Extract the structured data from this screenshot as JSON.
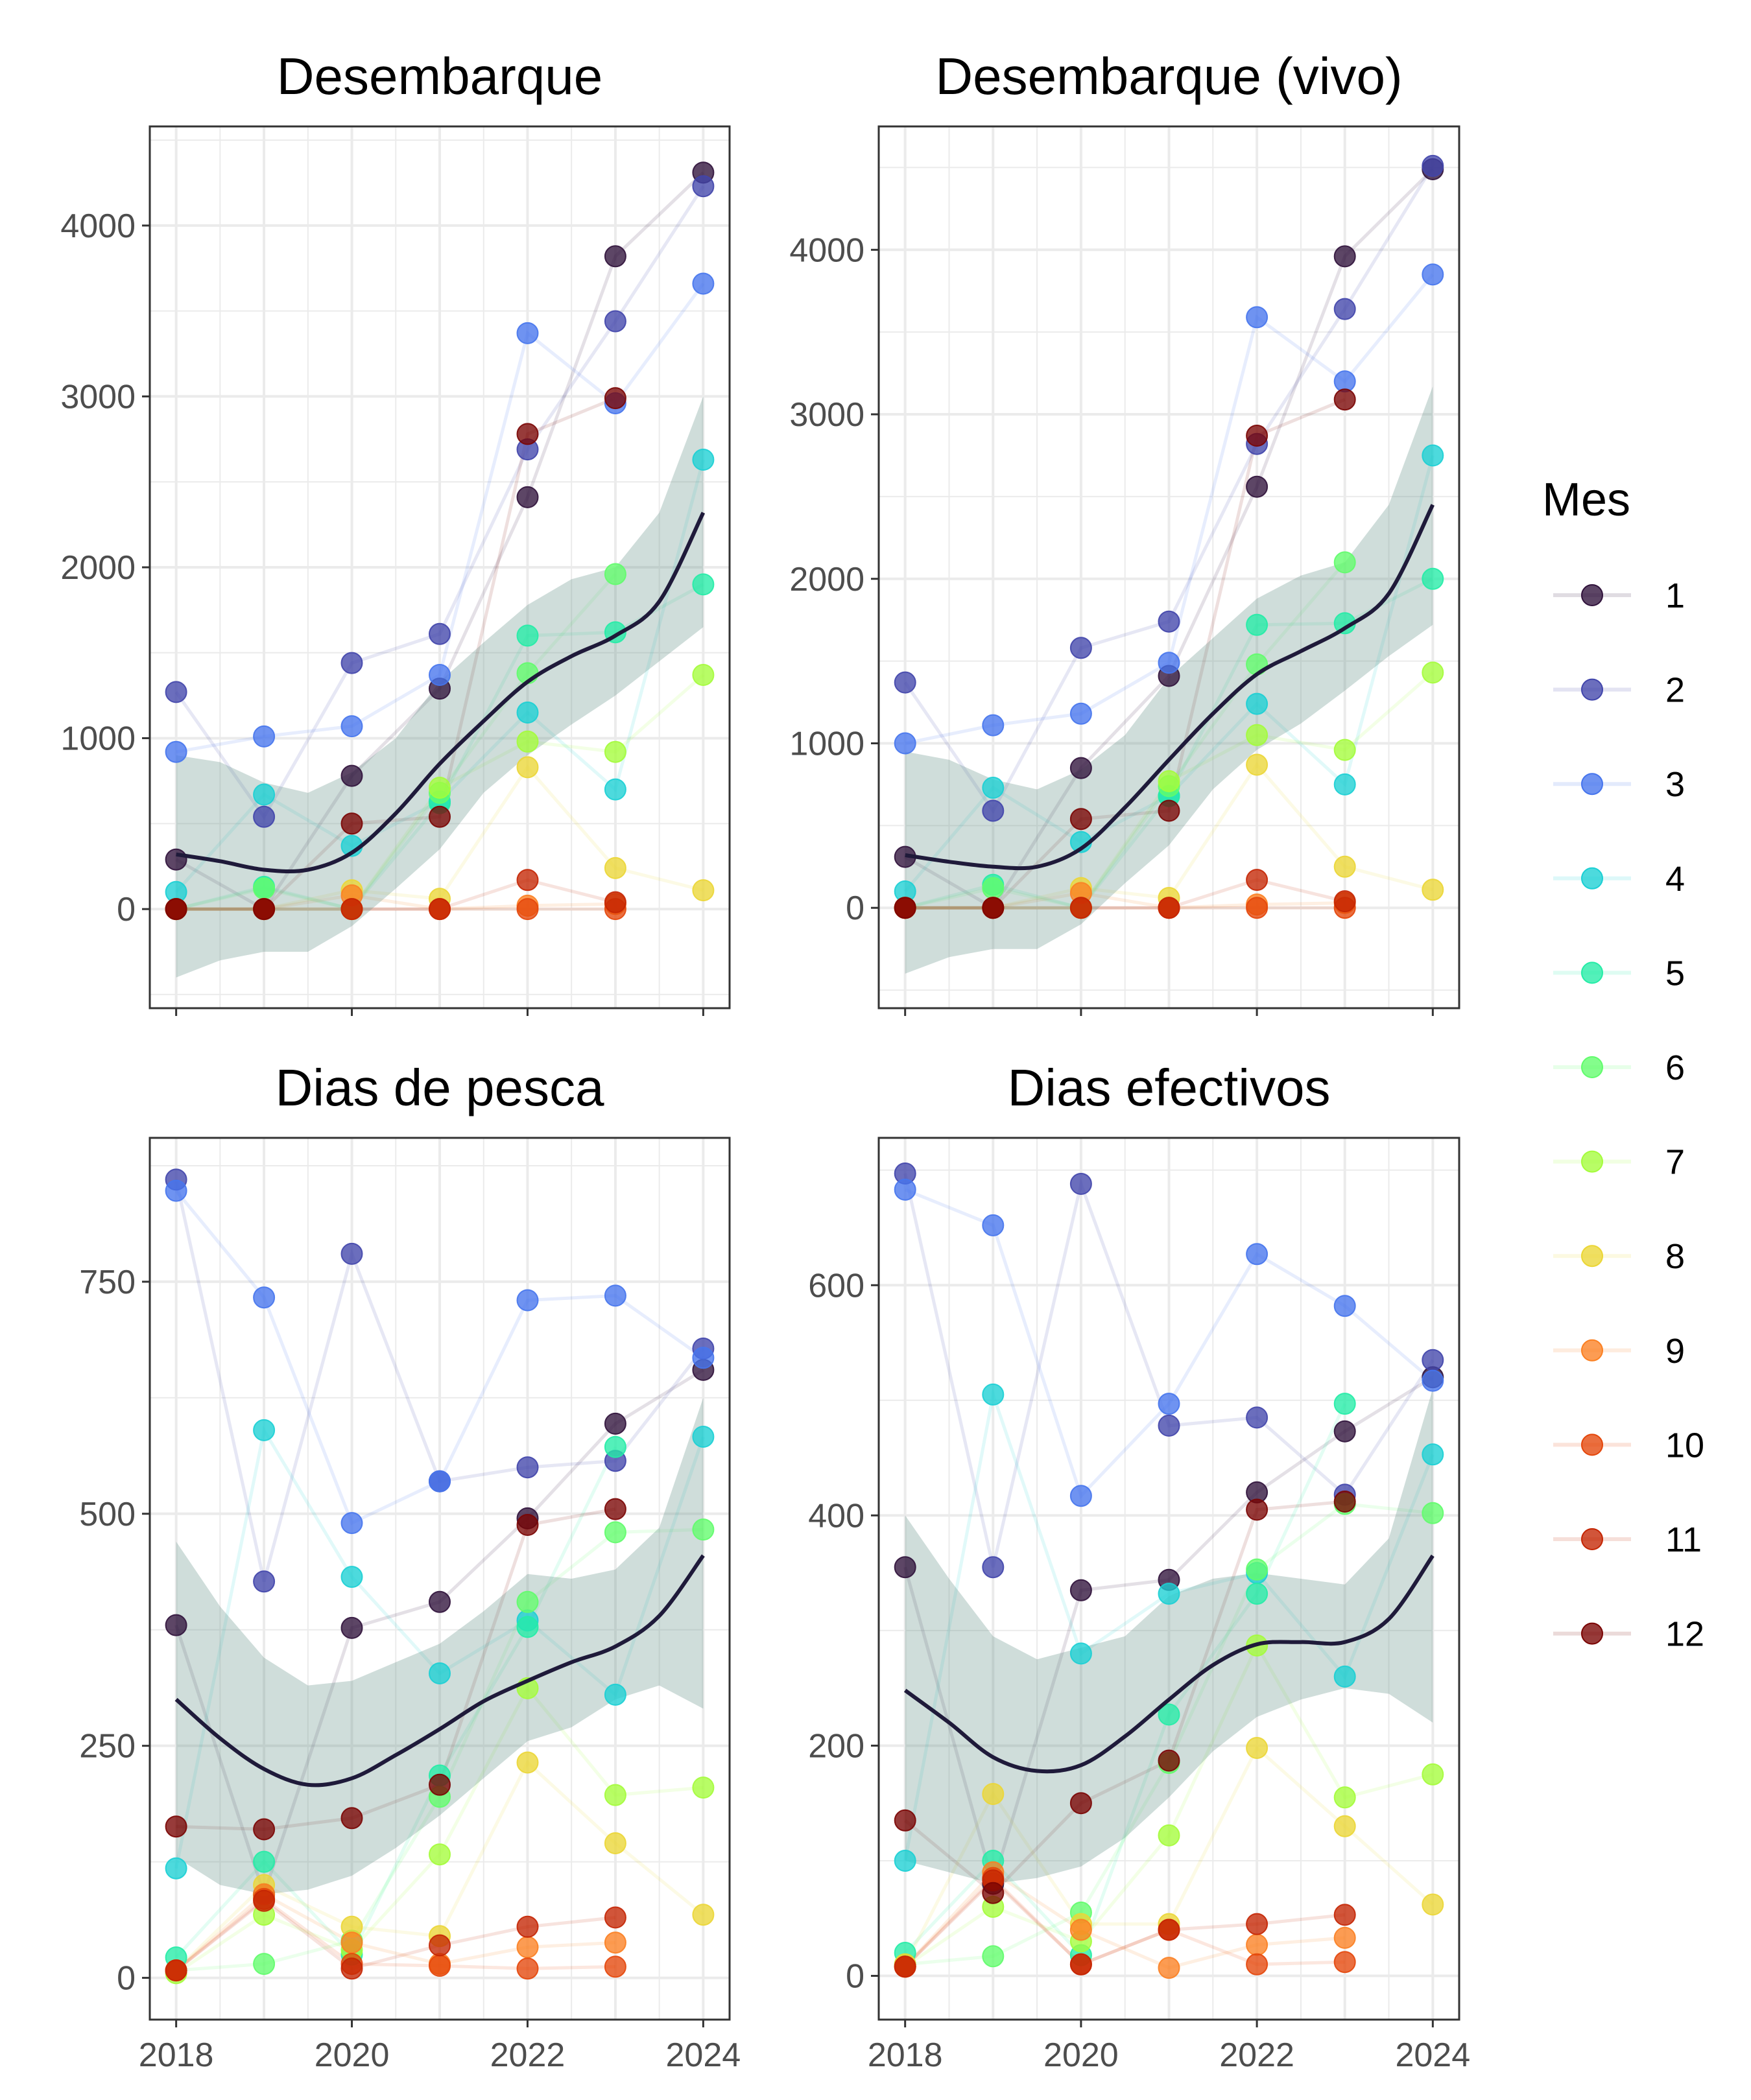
{
  "chart_data": [
    {
      "type": "scatter",
      "title": "Desembarque",
      "xlabel": "",
      "ylabel": "",
      "x": [
        2018,
        2019,
        2020,
        2021,
        2022,
        2023,
        2024
      ],
      "xlim": [
        2017.7,
        2024.3
      ],
      "ylim": [
        -580,
        4580
      ],
      "y_ticks": [
        0,
        1000,
        2000,
        3000,
        4000
      ],
      "y_tick_labels": [
        "0",
        "1000",
        "2000",
        "3000",
        "4000"
      ],
      "x_tick_labels_shown": false,
      "series": [
        {
          "name": "1",
          "values": [
            290,
            0,
            780,
            1290,
            2410,
            3820,
            4310
          ]
        },
        {
          "name": "2",
          "values": [
            1270,
            540,
            1440,
            1610,
            2690,
            3440,
            4230
          ]
        },
        {
          "name": "3",
          "values": [
            920,
            1010,
            1070,
            1370,
            3370,
            2960,
            3660
          ]
        },
        {
          "name": "4",
          "values": [
            100,
            670,
            370,
            630,
            1150,
            700,
            2630
          ]
        },
        {
          "name": "5",
          "values": [
            0,
            130,
            0,
            620,
            1600,
            1620,
            1900
          ]
        },
        {
          "name": "6",
          "values": [
            0,
            120,
            0,
            680,
            1380,
            1960,
            null
          ]
        },
        {
          "name": "7",
          "values": [
            0,
            0,
            0,
            710,
            980,
            920,
            1370
          ]
        },
        {
          "name": "8",
          "values": [
            0,
            0,
            110,
            60,
            830,
            240,
            110
          ]
        },
        {
          "name": "9",
          "values": [
            0,
            0,
            80,
            0,
            20,
            30,
            null
          ]
        },
        {
          "name": "10",
          "values": [
            0,
            0,
            0,
            0,
            0,
            0,
            null
          ]
        },
        {
          "name": "11",
          "values": [
            0,
            0,
            0,
            0,
            170,
            40,
            null
          ]
        },
        {
          "name": "12",
          "values": [
            0,
            0,
            500,
            540,
            2780,
            2990,
            null
          ]
        }
      ],
      "smooth": {
        "x": [
          2018,
          2018.5,
          2019,
          2019.5,
          2020,
          2020.5,
          2021,
          2021.5,
          2022,
          2022.5,
          2023,
          2023.5,
          2024
        ],
        "fit": [
          320,
          280,
          230,
          230,
          330,
          560,
          850,
          1100,
          1330,
          1480,
          1600,
          1800,
          2320
        ],
        "lower": [
          -400,
          -300,
          -250,
          -250,
          -100,
          120,
          350,
          680,
          900,
          1080,
          1250,
          1450,
          1650
        ],
        "upper": [
          900,
          860,
          740,
          680,
          800,
          1000,
          1330,
          1560,
          1780,
          1930,
          2000,
          2320,
          3000
        ]
      }
    },
    {
      "type": "scatter",
      "title": "Desembarque (vivo)",
      "xlabel": "",
      "ylabel": "",
      "x": [
        2018,
        2019,
        2020,
        2021,
        2022,
        2023,
        2024
      ],
      "xlim": [
        2017.7,
        2024.3
      ],
      "ylim": [
        -610,
        4750
      ],
      "y_ticks": [
        0,
        1000,
        2000,
        3000,
        4000
      ],
      "y_tick_labels": [
        "0",
        "1000",
        "2000",
        "3000",
        "4000"
      ],
      "x_tick_labels_shown": false,
      "series": [
        {
          "name": "1",
          "values": [
            310,
            0,
            850,
            1410,
            2560,
            3960,
            4490
          ]
        },
        {
          "name": "2",
          "values": [
            1370,
            590,
            1580,
            1740,
            2820,
            3640,
            4510
          ]
        },
        {
          "name": "3",
          "values": [
            1000,
            1110,
            1180,
            1490,
            3590,
            3200,
            3850
          ]
        },
        {
          "name": "4",
          "values": [
            100,
            730,
            400,
            680,
            1240,
            750,
            2750
          ]
        },
        {
          "name": "5",
          "values": [
            0,
            140,
            0,
            680,
            1720,
            1730,
            2000
          ]
        },
        {
          "name": "6",
          "values": [
            0,
            120,
            0,
            740,
            1480,
            2100,
            null
          ]
        },
        {
          "name": "7",
          "values": [
            0,
            0,
            0,
            770,
            1050,
            960,
            1430
          ]
        },
        {
          "name": "8",
          "values": [
            0,
            0,
            120,
            60,
            870,
            250,
            110
          ]
        },
        {
          "name": "9",
          "values": [
            0,
            0,
            90,
            0,
            20,
            30,
            null
          ]
        },
        {
          "name": "10",
          "values": [
            0,
            0,
            0,
            0,
            0,
            0,
            null
          ]
        },
        {
          "name": "11",
          "values": [
            0,
            0,
            0,
            0,
            170,
            40,
            null
          ]
        },
        {
          "name": "12",
          "values": [
            0,
            0,
            540,
            590,
            2870,
            3090,
            null
          ]
        }
      ],
      "smooth": {
        "x": [
          2018,
          2018.5,
          2019,
          2019.5,
          2020,
          2020.5,
          2021,
          2021.5,
          2022,
          2022.5,
          2023,
          2023.5,
          2024
        ],
        "fit": [
          320,
          280,
          250,
          250,
          360,
          610,
          900,
          1180,
          1420,
          1560,
          1700,
          1910,
          2450
        ],
        "lower": [
          -400,
          -300,
          -250,
          -250,
          -100,
          150,
          380,
          720,
          960,
          1120,
          1320,
          1530,
          1720
        ],
        "upper": [
          950,
          900,
          780,
          720,
          840,
          1050,
          1400,
          1640,
          1880,
          2020,
          2100,
          2450,
          3170
        ]
      }
    },
    {
      "type": "scatter",
      "title": "Dias de pesca",
      "xlabel": "",
      "ylabel": "",
      "x": [
        2018,
        2019,
        2020,
        2021,
        2022,
        2023,
        2024
      ],
      "xlim": [
        2017.7,
        2024.3
      ],
      "ylim": [
        -45,
        905
      ],
      "y_ticks": [
        0,
        250,
        500,
        750
      ],
      "y_tick_labels": [
        "0",
        "250",
        "500",
        "750"
      ],
      "x_ticks": [
        2018,
        2020,
        2022,
        2024
      ],
      "x_tick_labels": [
        "2018",
        "2020",
        "2022",
        "2024"
      ],
      "series": [
        {
          "name": "1",
          "values": [
            380,
            90,
            377,
            405,
            495,
            597,
            655
          ]
        },
        {
          "name": "2",
          "values": [
            860,
            427,
            780,
            535,
            550,
            557,
            678
          ]
        },
        {
          "name": "3",
          "values": [
            848,
            733,
            490,
            535,
            730,
            735,
            668
          ]
        },
        {
          "name": "4",
          "values": [
            118,
            590,
            432,
            328,
            385,
            305,
            583
          ]
        },
        {
          "name": "5",
          "values": [
            22,
            125,
            25,
            218,
            378,
            572,
            null
          ]
        },
        {
          "name": "6",
          "values": [
            8,
            15,
            40,
            195,
            405,
            480,
            483
          ]
        },
        {
          "name": "7",
          "values": [
            5,
            68,
            30,
            133,
            312,
            197,
            205
          ]
        },
        {
          "name": "8",
          "values": [
            8,
            100,
            55,
            45,
            232,
            145,
            68
          ]
        },
        {
          "name": "9",
          "values": [
            8,
            90,
            38,
            15,
            33,
            38,
            null
          ]
        },
        {
          "name": "10",
          "values": [
            8,
            85,
            15,
            13,
            10,
            12,
            null
          ]
        },
        {
          "name": "11",
          "values": [
            8,
            83,
            10,
            35,
            55,
            65,
            null
          ]
        },
        {
          "name": "12",
          "values": [
            163,
            160,
            172,
            208,
            488,
            505,
            null
          ]
        }
      ],
      "smooth": {
        "x": [
          2018,
          2018.5,
          2019,
          2019.5,
          2020,
          2020.5,
          2021,
          2021.5,
          2022,
          2022.5,
          2023,
          2023.5,
          2024
        ],
        "fit": [
          300,
          258,
          225,
          208,
          215,
          240,
          268,
          298,
          320,
          340,
          357,
          390,
          455
        ],
        "lower": [
          130,
          100,
          90,
          95,
          110,
          140,
          175,
          215,
          255,
          270,
          300,
          315,
          290
        ],
        "upper": [
          470,
          400,
          345,
          315,
          320,
          340,
          360,
          395,
          435,
          430,
          440,
          485,
          625
        ]
      }
    },
    {
      "type": "scatter",
      "title": "Dias efectivos",
      "xlabel": "",
      "ylabel": "",
      "x": [
        2018,
        2019,
        2020,
        2021,
        2022,
        2023,
        2024
      ],
      "xlim": [
        2017.7,
        2024.3
      ],
      "ylim": [
        -38,
        728
      ],
      "y_ticks": [
        0,
        200,
        400,
        600
      ],
      "y_tick_labels": [
        "0",
        "200",
        "400",
        "600"
      ],
      "x_ticks": [
        2018,
        2020,
        2022,
        2024
      ],
      "x_tick_labels": [
        "2018",
        "2020",
        "2022",
        "2024"
      ],
      "series": [
        {
          "name": "1",
          "values": [
            355,
            80,
            335,
            344,
            420,
            473,
            520
          ]
        },
        {
          "name": "2",
          "values": [
            697,
            355,
            688,
            478,
            485,
            418,
            535
          ]
        },
        {
          "name": "3",
          "values": [
            683,
            652,
            417,
            497,
            627,
            582,
            517
          ]
        },
        {
          "name": "4",
          "values": [
            100,
            505,
            280,
            332,
            350,
            260,
            453
          ]
        },
        {
          "name": "5",
          "values": [
            20,
            100,
            18,
            227,
            332,
            497,
            null
          ]
        },
        {
          "name": "6",
          "values": [
            10,
            17,
            55,
            185,
            353,
            410,
            402
          ]
        },
        {
          "name": "7",
          "values": [
            8,
            60,
            30,
            122,
            287,
            155,
            175
          ]
        },
        {
          "name": "8",
          "values": [
            10,
            158,
            45,
            45,
            198,
            130,
            62
          ]
        },
        {
          "name": "9",
          "values": [
            8,
            90,
            40,
            7,
            27,
            33,
            null
          ]
        },
        {
          "name": "10",
          "values": [
            8,
            85,
            10,
            40,
            10,
            12,
            null
          ]
        },
        {
          "name": "11",
          "values": [
            8,
            83,
            10,
            40,
            45,
            53,
            null
          ]
        },
        {
          "name": "12",
          "values": [
            135,
            72,
            150,
            187,
            405,
            412,
            null
          ]
        }
      ],
      "smooth": {
        "x": [
          2018,
          2018.5,
          2019,
          2019.5,
          2020,
          2020.5,
          2021,
          2021.5,
          2022,
          2022.5,
          2023,
          2023.5,
          2024
        ],
        "fit": [
          248,
          220,
          190,
          178,
          183,
          208,
          240,
          270,
          288,
          290,
          290,
          310,
          365
        ],
        "lower": [
          100,
          90,
          80,
          85,
          95,
          120,
          155,
          195,
          225,
          240,
          250,
          245,
          220
        ],
        "upper": [
          400,
          345,
          295,
          275,
          285,
          295,
          330,
          345,
          350,
          345,
          340,
          380,
          510
        ]
      }
    }
  ],
  "legend": {
    "title": "Mes",
    "placement": "right",
    "items": [
      "1",
      "2",
      "3",
      "4",
      "5",
      "6",
      "7",
      "8",
      "9",
      "10",
      "11",
      "12"
    ]
  },
  "colors": {
    "months": [
      "#30123b",
      "#4145ab",
      "#4675ed",
      "#1bcfd4",
      "#24eca6",
      "#61fc6c",
      "#a4fc3b",
      "#ebd636",
      "#fb8022",
      "#e4460a",
      "#c42503",
      "#7a0403"
    ],
    "smooth_line": "#1f1a3a",
    "ribbon": "#5f8f86",
    "grid": "#ebebeb",
    "panel_border": "#333333",
    "axis_text": "#4d4d4d"
  },
  "grid": true
}
